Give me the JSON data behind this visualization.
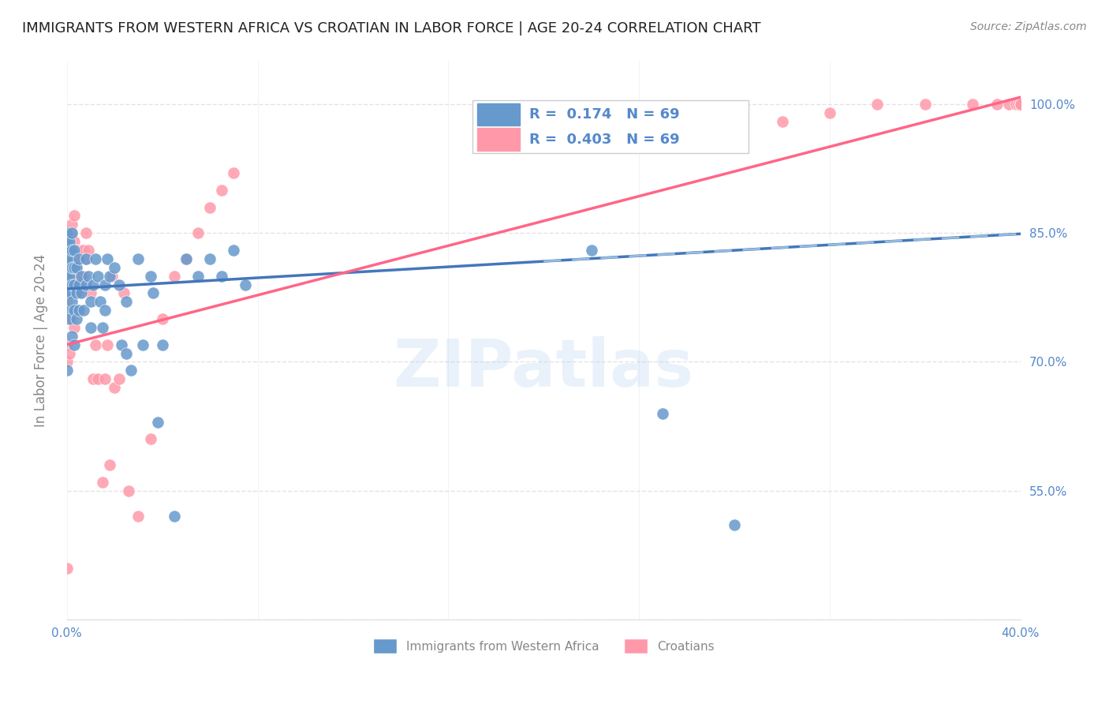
{
  "title": "IMMIGRANTS FROM WESTERN AFRICA VS CROATIAN IN LABOR FORCE | AGE 20-24 CORRELATION CHART",
  "source": "Source: ZipAtlas.com",
  "xlabel": "",
  "ylabel": "In Labor Force | Age 20-24",
  "watermark": "ZIPatlas",
  "x_min": 0.0,
  "x_max": 0.4,
  "y_min": 0.4,
  "y_max": 1.05,
  "x_ticks": [
    0.0,
    0.08,
    0.16,
    0.24,
    0.32,
    0.4
  ],
  "x_tick_labels": [
    "0.0%",
    "",
    "",
    "",
    "",
    "40.0%"
  ],
  "y_ticks": [
    0.4,
    0.55,
    0.7,
    0.85,
    1.0
  ],
  "y_tick_labels_right": [
    "",
    "55.0%",
    "70.0%",
    "85.0%",
    "100.0%"
  ],
  "blue_R": 0.174,
  "blue_N": 69,
  "pink_R": 0.403,
  "pink_N": 69,
  "blue_color": "#6699CC",
  "pink_color": "#FF99AA",
  "blue_line_color": "#4477BB",
  "pink_line_color": "#FF6688",
  "legend_label_blue": "Immigrants from Western Africa",
  "legend_label_pink": "Croatians",
  "blue_scatter_x": [
    0.0,
    0.0,
    0.0,
    0.0,
    0.0,
    0.0,
    0.0,
    0.0,
    0.001,
    0.001,
    0.001,
    0.001,
    0.001,
    0.002,
    0.002,
    0.002,
    0.002,
    0.002,
    0.002,
    0.003,
    0.003,
    0.003,
    0.003,
    0.003,
    0.004,
    0.004,
    0.004,
    0.005,
    0.005,
    0.005,
    0.006,
    0.006,
    0.007,
    0.008,
    0.008,
    0.009,
    0.01,
    0.01,
    0.011,
    0.012,
    0.013,
    0.014,
    0.015,
    0.016,
    0.016,
    0.017,
    0.018,
    0.02,
    0.022,
    0.023,
    0.025,
    0.025,
    0.027,
    0.03,
    0.032,
    0.035,
    0.036,
    0.038,
    0.04,
    0.045,
    0.05,
    0.055,
    0.06,
    0.065,
    0.07,
    0.075,
    0.22,
    0.25,
    0.28
  ],
  "blue_scatter_y": [
    0.69,
    0.76,
    0.78,
    0.8,
    0.82,
    0.83,
    0.84,
    0.85,
    0.75,
    0.78,
    0.8,
    0.82,
    0.84,
    0.73,
    0.77,
    0.79,
    0.81,
    0.83,
    0.85,
    0.72,
    0.76,
    0.79,
    0.81,
    0.83,
    0.75,
    0.78,
    0.81,
    0.76,
    0.79,
    0.82,
    0.78,
    0.8,
    0.76,
    0.79,
    0.82,
    0.8,
    0.74,
    0.77,
    0.79,
    0.82,
    0.8,
    0.77,
    0.74,
    0.76,
    0.79,
    0.82,
    0.8,
    0.81,
    0.79,
    0.72,
    0.71,
    0.77,
    0.69,
    0.82,
    0.72,
    0.8,
    0.78,
    0.63,
    0.72,
    0.52,
    0.82,
    0.8,
    0.82,
    0.8,
    0.83,
    0.79,
    0.83,
    0.64,
    0.51
  ],
  "pink_scatter_x": [
    0.0,
    0.0,
    0.0,
    0.0,
    0.0,
    0.0,
    0.0,
    0.001,
    0.001,
    0.001,
    0.001,
    0.002,
    0.002,
    0.002,
    0.002,
    0.002,
    0.003,
    0.003,
    0.003,
    0.003,
    0.003,
    0.004,
    0.004,
    0.004,
    0.005,
    0.005,
    0.006,
    0.006,
    0.007,
    0.007,
    0.008,
    0.008,
    0.009,
    0.01,
    0.011,
    0.012,
    0.013,
    0.015,
    0.016,
    0.017,
    0.018,
    0.019,
    0.02,
    0.022,
    0.024,
    0.026,
    0.03,
    0.035,
    0.04,
    0.045,
    0.05,
    0.055,
    0.06,
    0.065,
    0.07,
    0.28,
    0.3,
    0.32,
    0.34,
    0.36,
    0.38,
    0.39,
    0.395,
    0.398,
    0.399,
    0.4,
    0.4,
    0.4,
    0.4
  ],
  "pink_scatter_y": [
    0.46,
    0.7,
    0.72,
    0.77,
    0.8,
    0.83,
    0.85,
    0.71,
    0.79,
    0.82,
    0.85,
    0.75,
    0.8,
    0.83,
    0.85,
    0.86,
    0.74,
    0.78,
    0.82,
    0.84,
    0.87,
    0.76,
    0.8,
    0.83,
    0.78,
    0.82,
    0.79,
    0.83,
    0.8,
    0.83,
    0.82,
    0.85,
    0.83,
    0.78,
    0.68,
    0.72,
    0.68,
    0.56,
    0.68,
    0.72,
    0.58,
    0.8,
    0.67,
    0.68,
    0.78,
    0.55,
    0.52,
    0.61,
    0.75,
    0.8,
    0.82,
    0.85,
    0.88,
    0.9,
    0.92,
    0.96,
    0.98,
    0.99,
    1.0,
    1.0,
    1.0,
    1.0,
    1.0,
    1.0,
    1.0,
    1.0,
    1.0,
    1.0,
    1.0
  ],
  "blue_line_x": [
    0.0,
    0.4
  ],
  "blue_line_y_intercept": 0.785,
  "blue_line_slope": 0.16,
  "pink_line_x": [
    0.0,
    0.4
  ],
  "pink_line_y_intercept": 0.72,
  "pink_line_slope": 0.72,
  "dashed_line_color": "#99BBDD",
  "grid_color": "#DDDDDD",
  "title_color": "#222222",
  "right_axis_color": "#5588CC",
  "annotation_color": "#AACCEE"
}
